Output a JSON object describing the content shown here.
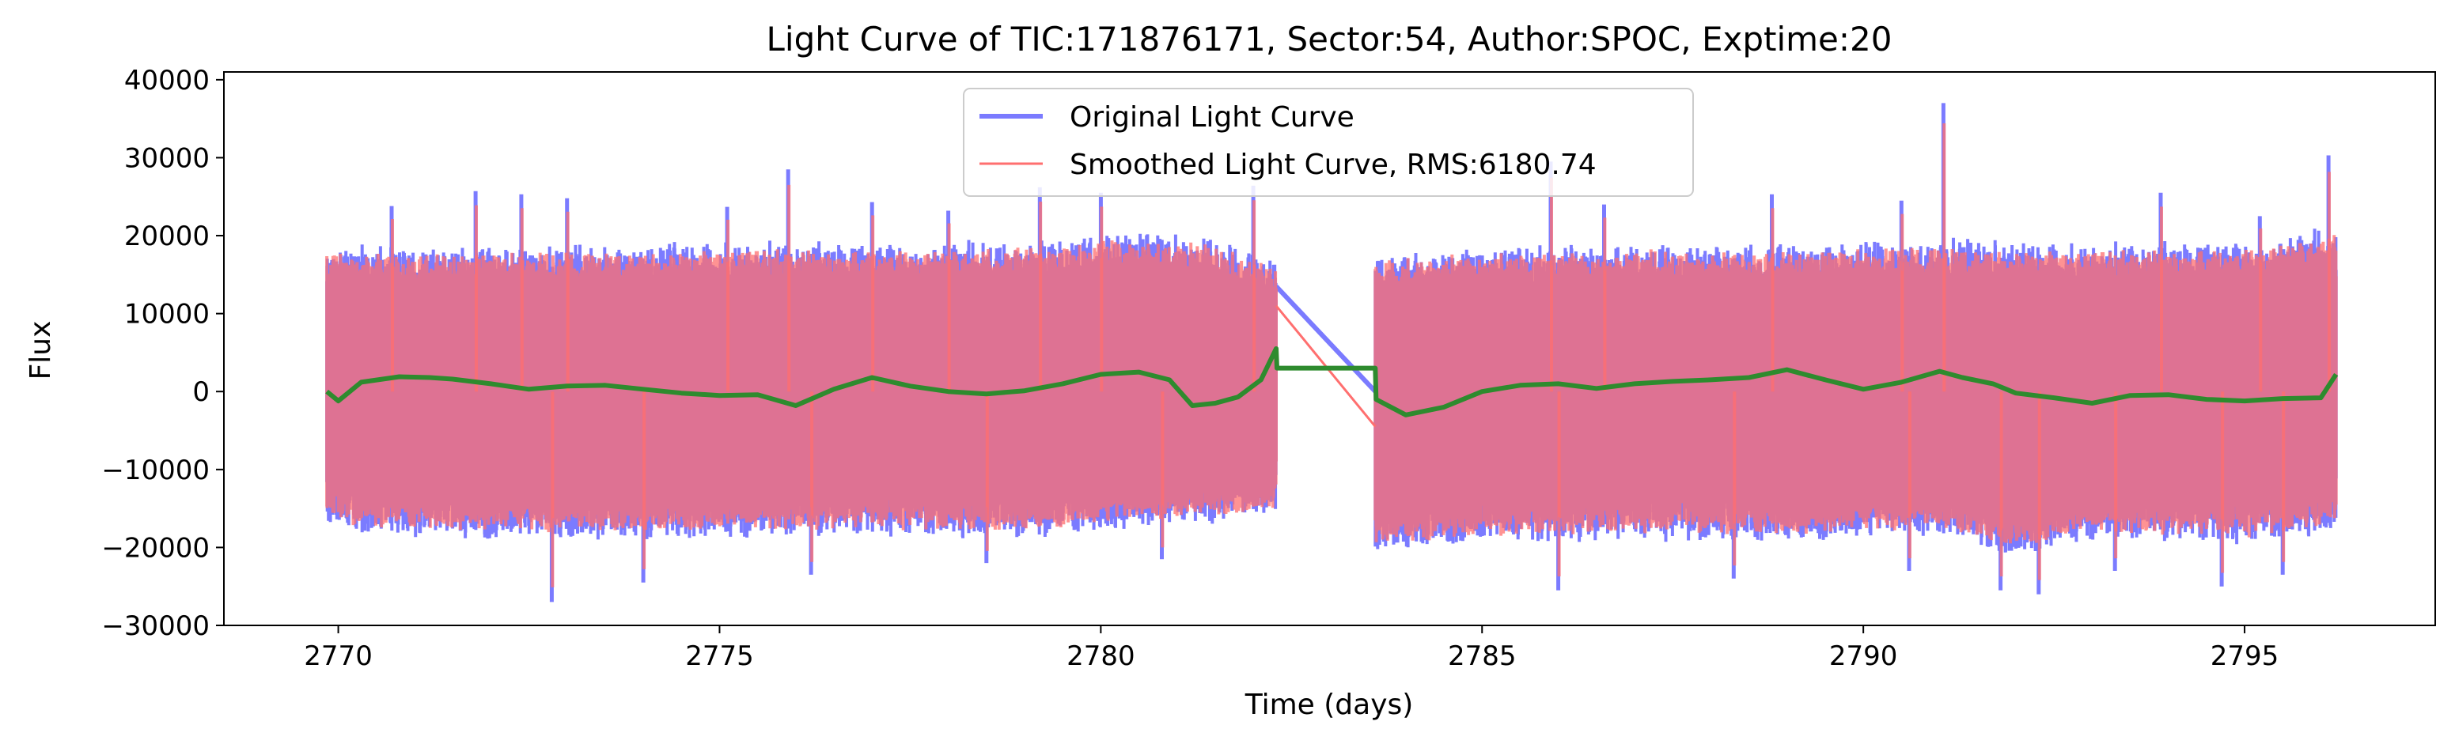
{
  "chart_data": {
    "type": "line",
    "title": "Light Curve of TIC:171876171, Sector:54, Author:SPOC, Exptime:20",
    "xlabel": "Time (days)",
    "ylabel": "Flux",
    "xlim": [
      2768.5,
      2797.5
    ],
    "ylim": [
      -30000,
      41000
    ],
    "xticks": [
      2770,
      2775,
      2780,
      2785,
      2790,
      2795
    ],
    "xtick_labels": [
      "2770",
      "2775",
      "2780",
      "2785",
      "2790",
      "2795"
    ],
    "yticks": [
      -30000,
      -20000,
      -10000,
      0,
      10000,
      20000,
      30000,
      40000
    ],
    "ytick_labels": [
      "−30000",
      "−20000",
      "−10000",
      "0",
      "10000",
      "20000",
      "30000",
      "40000"
    ],
    "grid": false,
    "legend_position": "top-center",
    "segments": [
      [
        2769.85,
        2782.3
      ],
      [
        2783.6,
        2796.2
      ]
    ],
    "series": [
      {
        "name": "Original Light Curve",
        "color": "#7b7bff",
        "style": "noisy band",
        "band_upper": [
          [
            2769.85,
            16000
          ],
          [
            2771,
            15500
          ],
          [
            2773,
            15800
          ],
          [
            2775,
            16200
          ],
          [
            2777,
            16000
          ],
          [
            2779,
            16300
          ],
          [
            2780.5,
            17500
          ],
          [
            2781.5,
            16500
          ],
          [
            2782.3,
            14000
          ],
          [
            2783.6,
            15000
          ],
          [
            2785,
            15500
          ],
          [
            2787,
            16000
          ],
          [
            2789,
            15800
          ],
          [
            2791,
            16500
          ],
          [
            2793,
            16000
          ],
          [
            2795,
            16200
          ],
          [
            2796.2,
            18000
          ]
        ],
        "band_lower": [
          [
            2769.85,
            -15000
          ],
          [
            2771,
            -15500
          ],
          [
            2773,
            -16000
          ],
          [
            2775,
            -15800
          ],
          [
            2777,
            -15500
          ],
          [
            2779,
            -15800
          ],
          [
            2780.5,
            -14500
          ],
          [
            2781.5,
            -14000
          ],
          [
            2782.3,
            -13000
          ],
          [
            2783.6,
            -17500
          ],
          [
            2785,
            -16500
          ],
          [
            2787,
            -16000
          ],
          [
            2789,
            -16200
          ],
          [
            2791,
            -15500
          ],
          [
            2792,
            -18000
          ],
          [
            2793,
            -16000
          ],
          [
            2795,
            -16500
          ],
          [
            2796.2,
            -15000
          ]
        ],
        "spikes": [
          [
            2770.7,
            23800
          ],
          [
            2771.8,
            25700
          ],
          [
            2772.4,
            25300
          ],
          [
            2773.0,
            24800
          ],
          [
            2775.1,
            23700
          ],
          [
            2775.9,
            28500
          ],
          [
            2777.0,
            24300
          ],
          [
            2778.0,
            23200
          ],
          [
            2779.2,
            26200
          ],
          [
            2780.0,
            25500
          ],
          [
            2782.0,
            26400
          ],
          [
            2785.9,
            29500
          ],
          [
            2786.6,
            24000
          ],
          [
            2788.8,
            25300
          ],
          [
            2790.5,
            24500
          ],
          [
            2791.05,
            37000
          ],
          [
            2793.9,
            25500
          ],
          [
            2795.2,
            22500
          ],
          [
            2796.1,
            30300
          ],
          [
            2772.8,
            -27000
          ],
          [
            2774.0,
            -24500
          ],
          [
            2776.2,
            -23500
          ],
          [
            2778.5,
            -22000
          ],
          [
            2780.8,
            -21500
          ],
          [
            2786.0,
            -25500
          ],
          [
            2788.3,
            -24000
          ],
          [
            2790.6,
            -23000
          ],
          [
            2791.8,
            -25500
          ],
          [
            2792.3,
            -26000
          ],
          [
            2793.3,
            -23000
          ],
          [
            2794.7,
            -25000
          ],
          [
            2795.5,
            -23500
          ]
        ],
        "gap_line": [
          [
            2782.3,
            13500
          ],
          [
            2783.6,
            0
          ]
        ]
      },
      {
        "name": "Smoothed Light Curve, RMS:6180.74",
        "color": "#ff6f6f",
        "style": "noisy band",
        "gap_line": [
          [
            2782.3,
            11000
          ],
          [
            2783.6,
            -4500
          ]
        ]
      },
      {
        "name": "",
        "color": "#2e8b2e",
        "style": "trend line",
        "points": [
          [
            2769.85,
            0
          ],
          [
            2770.0,
            -1200
          ],
          [
            2770.3,
            1200
          ],
          [
            2770.8,
            1900
          ],
          [
            2771.2,
            1800
          ],
          [
            2771.5,
            1600
          ],
          [
            2772.0,
            1000
          ],
          [
            2772.5,
            300
          ],
          [
            2773.0,
            700
          ],
          [
            2773.5,
            800
          ],
          [
            2774.0,
            300
          ],
          [
            2774.5,
            -200
          ],
          [
            2775.0,
            -500
          ],
          [
            2775.5,
            -400
          ],
          [
            2776.0,
            -1800
          ],
          [
            2776.5,
            300
          ],
          [
            2777.0,
            1800
          ],
          [
            2777.5,
            700
          ],
          [
            2778.0,
            0
          ],
          [
            2778.5,
            -300
          ],
          [
            2779.0,
            100
          ],
          [
            2779.5,
            1000
          ],
          [
            2780.0,
            2200
          ],
          [
            2780.5,
            2500
          ],
          [
            2780.9,
            1500
          ],
          [
            2781.2,
            -1800
          ],
          [
            2781.5,
            -1500
          ],
          [
            2781.8,
            -700
          ],
          [
            2782.1,
            1500
          ],
          [
            2782.3,
            5500
          ],
          [
            2782.31,
            3000
          ],
          [
            2783.6,
            3000
          ],
          [
            2783.61,
            -1000
          ],
          [
            2784.0,
            -3000
          ],
          [
            2784.5,
            -2000
          ],
          [
            2785.0,
            0
          ],
          [
            2785.5,
            800
          ],
          [
            2786.0,
            1000
          ],
          [
            2786.5,
            400
          ],
          [
            2787.0,
            1000
          ],
          [
            2787.5,
            1300
          ],
          [
            2788.0,
            1500
          ],
          [
            2788.5,
            1800
          ],
          [
            2789.0,
            2800
          ],
          [
            2789.5,
            1500
          ],
          [
            2790.0,
            300
          ],
          [
            2790.5,
            1200
          ],
          [
            2791.0,
            2600
          ],
          [
            2791.3,
            1800
          ],
          [
            2791.7,
            1000
          ],
          [
            2792.0,
            -200
          ],
          [
            2792.5,
            -800
          ],
          [
            2793.0,
            -1500
          ],
          [
            2793.5,
            -500
          ],
          [
            2794.0,
            -400
          ],
          [
            2794.5,
            -1000
          ],
          [
            2795.0,
            -1200
          ],
          [
            2795.5,
            -900
          ],
          [
            2796.0,
            -800
          ],
          [
            2796.2,
            2200
          ]
        ]
      }
    ]
  }
}
